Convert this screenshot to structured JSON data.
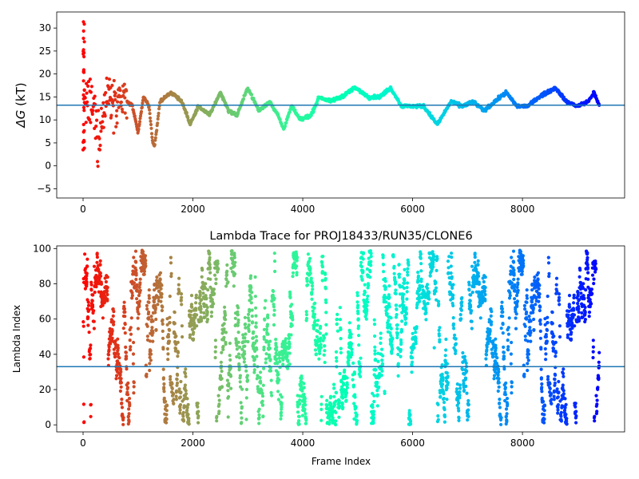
{
  "chart_data": [
    {
      "type": "scatter",
      "title": "",
      "xlabel": "",
      "ylabel_main": "ΔG",
      "ylabel_unit": " (kT)",
      "xlim": [
        -480,
        9860
      ],
      "ylim": [
        -7,
        33.5
      ],
      "xticks": [
        0,
        2000,
        4000,
        6000,
        8000
      ],
      "yticks": [
        -5,
        0,
        5,
        10,
        15,
        20,
        25,
        30
      ],
      "hline": 13.2,
      "hline_color": "#1f77b4",
      "colormap": "rainbow-reversed",
      "x_max": 9400,
      "trend": [
        [
          0,
          12
        ],
        [
          120,
          14
        ],
        [
          300,
          8
        ],
        [
          450,
          16
        ],
        [
          600,
          15
        ],
        [
          800,
          14
        ],
        [
          900,
          13
        ],
        [
          1000,
          7
        ],
        [
          1100,
          15
        ],
        [
          1200,
          13
        ],
        [
          1270,
          5
        ],
        [
          1300,
          4
        ],
        [
          1400,
          14
        ],
        [
          1600,
          16
        ],
        [
          1800,
          14
        ],
        [
          1950,
          9
        ],
        [
          2100,
          13
        ],
        [
          2300,
          11
        ],
        [
          2500,
          16
        ],
        [
          2650,
          12
        ],
        [
          2800,
          11
        ],
        [
          3000,
          17
        ],
        [
          3200,
          12
        ],
        [
          3400,
          14
        ],
        [
          3550,
          11
        ],
        [
          3650,
          8
        ],
        [
          3800,
          13
        ],
        [
          3950,
          10
        ],
        [
          4150,
          11
        ],
        [
          4300,
          15
        ],
        [
          4500,
          14
        ],
        [
          4700,
          15
        ],
        [
          4950,
          17
        ],
        [
          5200,
          15
        ],
        [
          5400,
          15
        ],
        [
          5600,
          17
        ],
        [
          5800,
          13
        ],
        [
          6000,
          13
        ],
        [
          6200,
          13
        ],
        [
          6450,
          9
        ],
        [
          6700,
          14
        ],
        [
          6900,
          13
        ],
        [
          7100,
          14
        ],
        [
          7300,
          12
        ],
        [
          7500,
          14
        ],
        [
          7700,
          16
        ],
        [
          7900,
          13
        ],
        [
          8100,
          13
        ],
        [
          8300,
          15
        ],
        [
          8600,
          17
        ],
        [
          8800,
          14
        ],
        [
          9000,
          13
        ],
        [
          9200,
          14
        ],
        [
          9300,
          16
        ],
        [
          9400,
          13
        ]
      ]
    },
    {
      "type": "scatter",
      "title": "Lambda Trace for PROJ18433/RUN35/CLONE6",
      "xlabel": "Frame Index",
      "ylabel": "Lambda Index",
      "xlim": [
        -480,
        9860
      ],
      "ylim": [
        -4,
        101.5
      ],
      "xticks": [
        0,
        2000,
        4000,
        6000,
        8000
      ],
      "yticks": [
        0,
        20,
        40,
        60,
        80,
        100
      ],
      "hline": 33,
      "hline_color": "#1f77b4",
      "colormap": "rainbow-reversed",
      "x_max": 9400
    }
  ]
}
